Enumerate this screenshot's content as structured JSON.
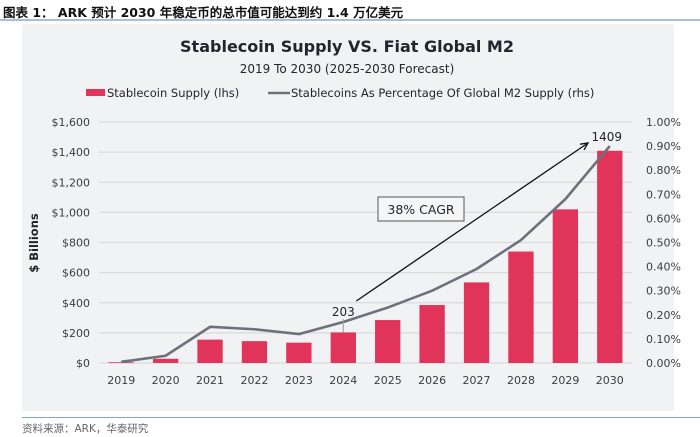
{
  "figure": {
    "caption": "图表 1：  ARK 预计 2030 年稳定币的总市值可能达到约 1.4 万亿美元",
    "source": "资料来源：ARK，华泰研究"
  },
  "chart_data": {
    "type": "bar",
    "title": "Stablecoin Supply VS. Fiat Global M2",
    "subtitle": "2019 To 2030 (2025-2030 Forecast)",
    "xlabel": "",
    "ylabel": "$ Billions",
    "ylabel_right": "",
    "categories": [
      "2019",
      "2020",
      "2021",
      "2022",
      "2023",
      "2024",
      "2025",
      "2026",
      "2027",
      "2028",
      "2029",
      "2030"
    ],
    "series": [
      {
        "name": "Stablecoin Supply (lhs)",
        "type": "bar",
        "axis": "left",
        "color": "#e0345a",
        "values": [
          5,
          28,
          155,
          145,
          135,
          203,
          285,
          385,
          535,
          740,
          1020,
          1409
        ]
      },
      {
        "name": "Stablecoins As Percentage Of Global M2 Supply (rhs)",
        "type": "line",
        "axis": "right",
        "color": "#6d717b",
        "values": [
          0.005,
          0.03,
          0.15,
          0.14,
          0.12,
          0.17,
          0.23,
          0.3,
          0.39,
          0.51,
          0.68,
          0.9
        ]
      }
    ],
    "ylim": [
      0,
      1600
    ],
    "yticks": [
      0,
      200,
      400,
      600,
      800,
      1000,
      1200,
      1400,
      1600
    ],
    "ytick_labels": [
      "$0",
      "$200",
      "$400",
      "$600",
      "$800",
      "$1,000",
      "$1,200",
      "$1,400",
      "$1,600"
    ],
    "ylim_right": [
      0,
      1.0
    ],
    "yticks_right": [
      0,
      0.1,
      0.2,
      0.3,
      0.4,
      0.5,
      0.6,
      0.7,
      0.8,
      0.9,
      1.0
    ],
    "ytick_labels_right": [
      "0.00%",
      "0.10%",
      "0.20%",
      "0.30%",
      "0.40%",
      "0.50%",
      "0.60%",
      "0.70%",
      "0.80%",
      "0.90%",
      "1.00%"
    ],
    "grid": true,
    "legend": "top",
    "annotations": {
      "start_label": "203",
      "end_label": "1409",
      "cagr_label": "38% CAGR",
      "arrow_from_category": "2024",
      "arrow_to_category": "2030"
    }
  }
}
